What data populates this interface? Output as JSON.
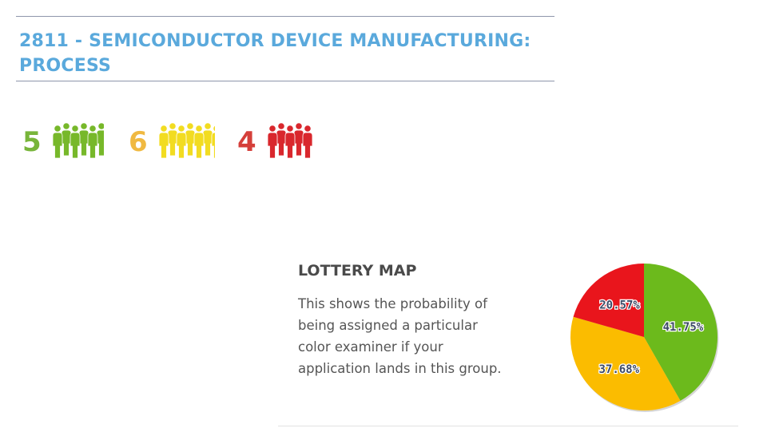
{
  "heading": {
    "title": "2811 - SEMICONDUCTOR DEVICE MANUFACTURING: PROCESS"
  },
  "examiners": [
    {
      "count": "5",
      "color_name": "green",
      "color": "#77b82a",
      "icon": "people-icon"
    },
    {
      "count": "6",
      "color_name": "yellow",
      "color": "#f2dc21",
      "count_color": "#f0b941",
      "icon": "people-icon"
    },
    {
      "count": "4",
      "color_name": "red",
      "color": "#d9272d",
      "count_color": "#d53f3a",
      "icon": "people-icon"
    }
  ],
  "lottery": {
    "title": "LOTTERY MAP",
    "description": "This shows the probability of being assigned a particular color examiner if your application lands in this group."
  },
  "chart_data": {
    "type": "pie",
    "slices": [
      {
        "label": "41.75%",
        "value": 41.75,
        "color": "#6cba1c"
      },
      {
        "label": "37.68%",
        "value": 37.68,
        "color": "#fbbc00"
      },
      {
        "label": "20.57%",
        "value": 20.57,
        "color": "#e9151c"
      }
    ],
    "start": "12 o'clock",
    "direction": "clockwise"
  }
}
